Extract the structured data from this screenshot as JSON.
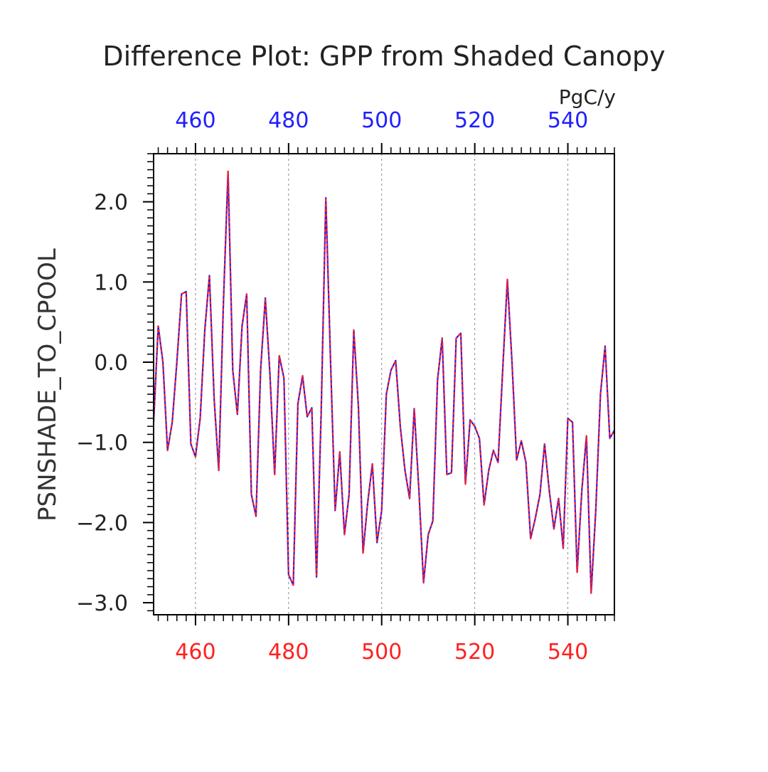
{
  "chart_data": {
    "type": "line",
    "title": "Difference Plot: GPP from Shaded Canopy",
    "units": "PgC/y",
    "ylabel": "PSNSHADE_TO_CPOOL",
    "xlabel": "",
    "xlim": [
      451,
      550
    ],
    "ylim": [
      -3.15,
      2.6
    ],
    "x_ticks": [
      460,
      480,
      500,
      520,
      540
    ],
    "x_tick_labels": [
      "460",
      "480",
      "500",
      "520",
      "540"
    ],
    "y_ticks": [
      -3.0,
      -2.0,
      -1.0,
      0.0,
      1.0,
      2.0
    ],
    "y_tick_labels": [
      "−3.0",
      "−2.0",
      "−1.0",
      "0.0",
      "1.0",
      "2.0"
    ],
    "grid": "vertical dashed at major x ticks",
    "colors": {
      "top_axis_labels": "#2020ff",
      "bottom_axis_labels": "#ff2020"
    },
    "series": [
      {
        "color": "#1a1aff",
        "style": "solid",
        "x": [
          451,
          452,
          453,
          454,
          455,
          456,
          457,
          458,
          459,
          460,
          461,
          462,
          463,
          464,
          465,
          466,
          467,
          468,
          469,
          470,
          471,
          472,
          473,
          474,
          475,
          476,
          477,
          478,
          479,
          480,
          481,
          482,
          483,
          484,
          485,
          486,
          487,
          488,
          489,
          490,
          491,
          492,
          493,
          494,
          495,
          496,
          497,
          498,
          499,
          500,
          501,
          502,
          503,
          504,
          505,
          506,
          507,
          508,
          509,
          510,
          511,
          512,
          513,
          514,
          515,
          516,
          517,
          518,
          519,
          520,
          521,
          522,
          523,
          524,
          525,
          526,
          527,
          528,
          529,
          530,
          531,
          532,
          533,
          534,
          535,
          536,
          537,
          538,
          539,
          540,
          541,
          542,
          543,
          544,
          545,
          546,
          547,
          548,
          549,
          550
        ],
        "y": [
          -0.75,
          0.45,
          0.0,
          -1.1,
          -0.75,
          0.0,
          0.85,
          0.88,
          -1.02,
          -1.18,
          -0.7,
          0.4,
          1.08,
          -0.45,
          -1.35,
          0.75,
          2.38,
          -0.1,
          -0.65,
          0.45,
          0.85,
          -1.65,
          -1.92,
          -0.1,
          0.8,
          -0.15,
          -1.4,
          0.08,
          -0.2,
          -2.65,
          -2.78,
          -0.52,
          -0.17,
          -0.68,
          -0.57,
          -2.68,
          -0.65,
          2.05,
          0.05,
          -1.85,
          -1.12,
          -2.15,
          -1.65,
          0.4,
          -0.55,
          -2.38,
          -1.75,
          -1.27,
          -2.25,
          -1.85,
          -0.4,
          -0.1,
          0.02,
          -0.8,
          -1.35,
          -1.7,
          -0.58,
          -1.6,
          -2.75,
          -2.15,
          -1.98,
          -0.22,
          0.3,
          -1.4,
          -1.38,
          0.3,
          0.36,
          -1.52,
          -0.72,
          -0.8,
          -0.95,
          -1.78,
          -1.35,
          -1.1,
          -1.25,
          -0.1,
          1.03,
          0.0,
          -1.22,
          -0.98,
          -1.25,
          -2.2,
          -1.95,
          -1.65,
          -1.02,
          -1.6,
          -2.08,
          -1.7,
          -2.32,
          -0.7,
          -0.75,
          -2.62,
          -1.6,
          -0.92,
          -2.88,
          -1.85,
          -0.4,
          0.2,
          -0.95,
          -0.85
        ]
      },
      {
        "color": "#ff2020",
        "style": "dashed",
        "x": [
          451,
          452,
          453,
          454,
          455,
          456,
          457,
          458,
          459,
          460,
          461,
          462,
          463,
          464,
          465,
          466,
          467,
          468,
          469,
          470,
          471,
          472,
          473,
          474,
          475,
          476,
          477,
          478,
          479,
          480,
          481,
          482,
          483,
          484,
          485,
          486,
          487,
          488,
          489,
          490,
          491,
          492,
          493,
          494,
          495,
          496,
          497,
          498,
          499,
          500,
          501,
          502,
          503,
          504,
          505,
          506,
          507,
          508,
          509,
          510,
          511,
          512,
          513,
          514,
          515,
          516,
          517,
          518,
          519,
          520,
          521,
          522,
          523,
          524,
          525,
          526,
          527,
          528,
          529,
          530,
          531,
          532,
          533,
          534,
          535,
          536,
          537,
          538,
          539,
          540,
          541,
          542,
          543,
          544,
          545,
          546,
          547,
          548,
          549,
          550
        ],
        "y": [
          -0.75,
          0.45,
          0.0,
          -1.1,
          -0.75,
          0.0,
          0.85,
          0.88,
          -1.02,
          -1.18,
          -0.7,
          0.4,
          1.08,
          -0.45,
          -1.35,
          0.75,
          2.38,
          -0.1,
          -0.65,
          0.45,
          0.85,
          -1.65,
          -1.92,
          -0.1,
          0.8,
          -0.15,
          -1.4,
          0.08,
          -0.2,
          -2.65,
          -2.78,
          -0.52,
          -0.17,
          -0.68,
          -0.57,
          -2.68,
          -0.65,
          2.05,
          0.05,
          -1.85,
          -1.12,
          -2.15,
          -1.65,
          0.4,
          -0.55,
          -2.38,
          -1.75,
          -1.27,
          -2.25,
          -1.85,
          -0.4,
          -0.1,
          0.02,
          -0.8,
          -1.35,
          -1.7,
          -0.58,
          -1.6,
          -2.75,
          -2.15,
          -1.98,
          -0.22,
          0.3,
          -1.4,
          -1.38,
          0.3,
          0.36,
          -1.52,
          -0.72,
          -0.8,
          -0.95,
          -1.78,
          -1.35,
          -1.1,
          -1.25,
          -0.1,
          1.03,
          0.0,
          -1.22,
          -0.98,
          -1.25,
          -2.2,
          -1.95,
          -1.65,
          -1.02,
          -1.6,
          -2.08,
          -1.7,
          -2.32,
          -0.7,
          -0.75,
          -2.62,
          -1.6,
          -0.92,
          -2.88,
          -1.85,
          -0.4,
          0.2,
          -0.95,
          -0.85
        ]
      }
    ]
  }
}
